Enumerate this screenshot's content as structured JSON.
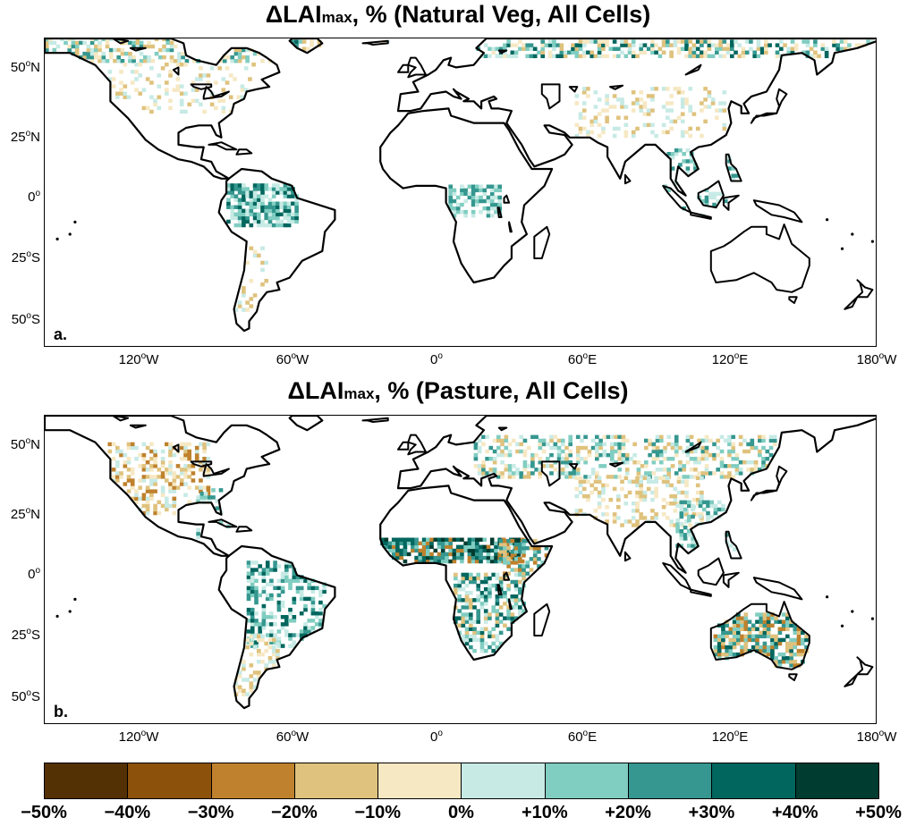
{
  "panels": [
    {
      "title_prefix": "ΔLAI",
      "title_sub": "max",
      "title_suffix": ", % (Natural Veg, All Cells)",
      "letter": "a."
    },
    {
      "title_prefix": "ΔLAI",
      "title_sub": "max",
      "title_suffix": ", % (Pasture, All Cells)",
      "letter": "b."
    }
  ],
  "lat_labels": [
    {
      "value": "50",
      "unit": "o",
      "hemi": "N"
    },
    {
      "value": "25",
      "unit": "o",
      "hemi": "N"
    },
    {
      "value": "0",
      "unit": "o",
      "hemi": ""
    },
    {
      "value": "25",
      "unit": "o",
      "hemi": "S"
    },
    {
      "value": "50",
      "unit": "o",
      "hemi": "S"
    }
  ],
  "lon_labels": [
    {
      "value": "120",
      "unit": "o",
      "hemi": "W"
    },
    {
      "value": "60",
      "unit": "o",
      "hemi": "W"
    },
    {
      "value": "0",
      "unit": "o",
      "hemi": ""
    },
    {
      "value": "60",
      "unit": "o",
      "hemi": "E"
    },
    {
      "value": "120",
      "unit": "o",
      "hemi": "E"
    },
    {
      "value": "180",
      "unit": "o",
      "hemi": "W"
    }
  ],
  "colorbar": {
    "colors": [
      "#543005",
      "#8c510a",
      "#bf812d",
      "#dfc27d",
      "#f6e8c3",
      "#c7eae5",
      "#80cdc1",
      "#35978f",
      "#01665e",
      "#003c30"
    ],
    "ticks": [
      "−50%",
      "−40%",
      "−30%",
      "−20%",
      "−10%",
      "0%",
      "+10%",
      "+20%",
      "+30%",
      "+40%",
      "+50%"
    ]
  }
}
